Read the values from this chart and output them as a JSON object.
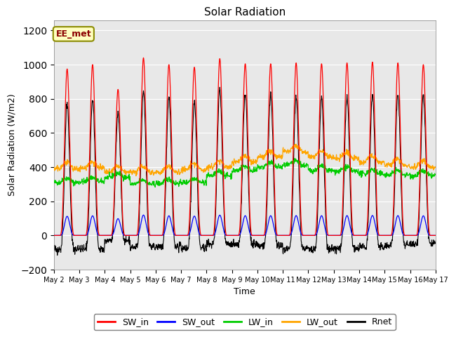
{
  "title": "Solar Radiation",
  "xlabel": "Time",
  "ylabel": "Solar Radiation (W/m2)",
  "ylim": [
    -200,
    1260
  ],
  "yticks": [
    -200,
    0,
    200,
    400,
    600,
    800,
    1000,
    1200
  ],
  "start_day": 2,
  "end_day": 17,
  "n_days": 15,
  "dt": 0.25,
  "colors": {
    "SW_in": "#FF0000",
    "SW_out": "#0000FF",
    "LW_in": "#00CC00",
    "LW_out": "#FFA500",
    "Rnet": "#000000"
  },
  "bg_color": "#E8E8E8",
  "figsize": [
    6.4,
    4.8
  ],
  "dpi": 100,
  "annotation_text": "EE_met",
  "peak_heights": [
    975,
    1000,
    855,
    1040,
    1000,
    985,
    1035,
    1005,
    1005,
    1010,
    1005,
    1010,
    1015,
    1010,
    1000
  ],
  "LW_in_base": [
    310,
    315,
    340,
    300,
    305,
    310,
    350,
    380,
    400,
    410,
    380,
    375,
    360,
    355,
    350
  ],
  "LW_out_base": [
    390,
    395,
    370,
    370,
    370,
    385,
    400,
    430,
    460,
    490,
    460,
    450,
    430,
    410,
    400
  ],
  "sunrise": 5.5,
  "sunset": 19.5,
  "albedo": 0.115,
  "night_Rnet": -60
}
